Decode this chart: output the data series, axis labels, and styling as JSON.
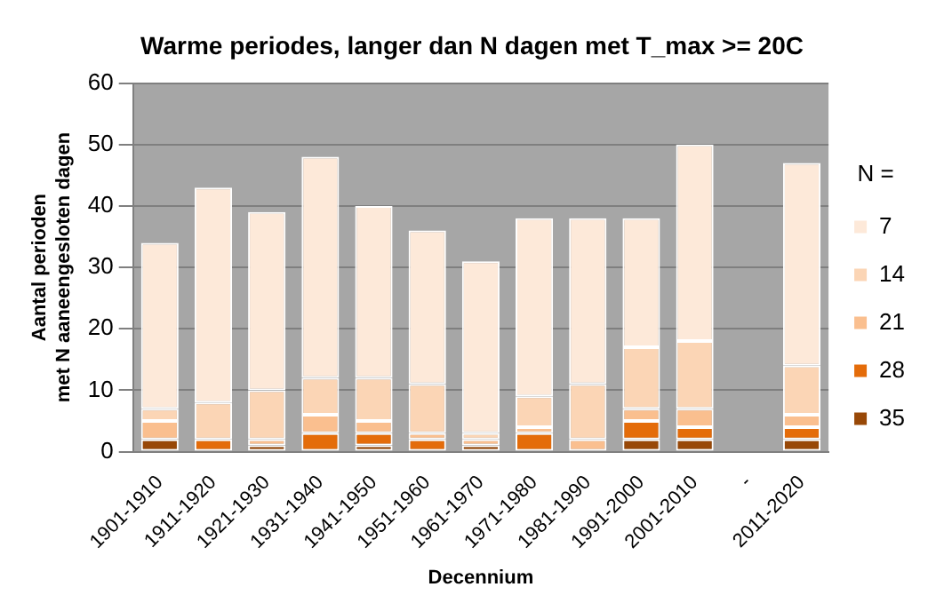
{
  "chart_data": {
    "type": "bar",
    "title": "Warme periodes, langer dan N dagen met T_max >= 20C",
    "xlabel": "Decennium",
    "ylabel": "Aantal perioden\nmet N aaneengesloten dagen",
    "legend_title": "N =",
    "categories": [
      "1901-1910",
      "1911-1920",
      "1921-1930",
      "1931-1940",
      "1941-1950",
      "1951-1960",
      "1961-1970",
      "1971-1980",
      "1981-1990",
      "1991-2000",
      "2001-2010",
      "-",
      "2011-2020"
    ],
    "stacked": true,
    "ylim": [
      0,
      60
    ],
    "yticks": [
      0,
      10,
      20,
      30,
      40,
      50,
      60
    ],
    "grid": "y",
    "legend": "right",
    "series": [
      {
        "name": "35",
        "color": "#984807",
        "values": [
          2,
          0,
          1,
          0,
          1,
          0,
          1,
          0,
          0,
          2,
          2,
          null,
          2
        ]
      },
      {
        "name": "28",
        "color": "#e46c0a",
        "values": [
          0,
          2,
          0,
          3,
          2,
          2,
          0,
          3,
          0,
          3,
          2,
          null,
          2
        ]
      },
      {
        "name": "21",
        "color": "#fabf8f",
        "values": [
          3,
          0,
          1,
          3,
          2,
          1,
          1,
          1,
          2,
          2,
          3,
          null,
          2
        ]
      },
      {
        "name": "14",
        "color": "#fbd5b5",
        "values": [
          2,
          6,
          8,
          6,
          7,
          8,
          1,
          5,
          9,
          10,
          11,
          null,
          8
        ]
      },
      {
        "name": "7",
        "color": "#fde9d9",
        "values": [
          27,
          35,
          29,
          36,
          28,
          25,
          28,
          29,
          27,
          21,
          32,
          null,
          33
        ]
      }
    ]
  }
}
